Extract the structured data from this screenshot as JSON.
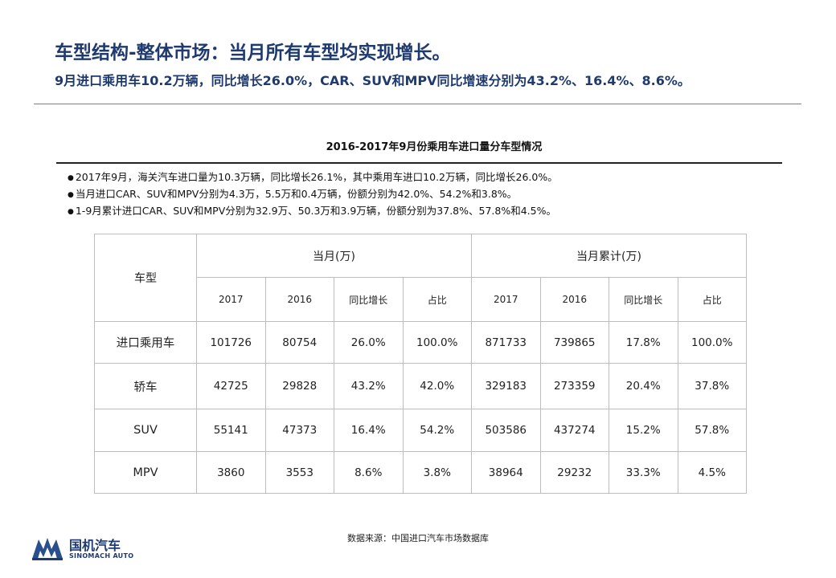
{
  "header": {
    "title": "车型结构-整体市场：当月所有车型均实现增长。",
    "subtitle": "9月进口乘用车10.2万辆，同比增长26.0%，CAR、SUV和MPV同比增速分别为43.2%、16.4%、8.6%。"
  },
  "table_caption": "2016-2017年9月份乘用车进口量分车型情况",
  "notes": [
    "2017年9月，海关汽车进口量为10.3万辆，同比增长26.1%，其中乘用车进口10.2万辆，同比增长26.0%。",
    "当月进口CAR、SUV和MPV分别为4.3万，5.5万和0.4万辆，份额分别为42.0%、54.2%和3.8%。",
    "1-9月累计进口CAR、SUV和MPV分别为32.9万、50.3万和3.9万辆，份额分别为37.8%、57.8%和4.5%。"
  ],
  "table": {
    "type_header": "车型",
    "group_headers": [
      "当月(万)",
      "当月累计(万)"
    ],
    "sub_headers": [
      "2017",
      "2016",
      "同比增长",
      "占比",
      "2017",
      "2016",
      "同比增长",
      "占比"
    ],
    "rows": [
      {
        "label": "进口乘用车",
        "cells": [
          "101726",
          "80754",
          "26.0%",
          "100.0%",
          "871733",
          "739865",
          "17.8%",
          "100.0%"
        ]
      },
      {
        "label": "轿车",
        "cells": [
          "42725",
          "29828",
          "43.2%",
          "42.0%",
          "329183",
          "273359",
          "20.4%",
          "37.8%"
        ]
      },
      {
        "label": "SUV",
        "cells": [
          "55141",
          "47373",
          "16.4%",
          "54.2%",
          "503586",
          "437274",
          "15.2%",
          "57.8%"
        ]
      },
      {
        "label": "MPV",
        "cells": [
          "3860",
          "3553",
          "8.6%",
          "3.8%",
          "38964",
          "29232",
          "33.3%",
          "4.5%"
        ]
      }
    ]
  },
  "source": "数据来源：中国进口汽车市场数据库",
  "logo": {
    "name_cn": "国机汽车",
    "name_en": "SINOMACH AUTO",
    "icon": "sinomach-logo-icon",
    "brand_color": "#1f3a6e"
  }
}
